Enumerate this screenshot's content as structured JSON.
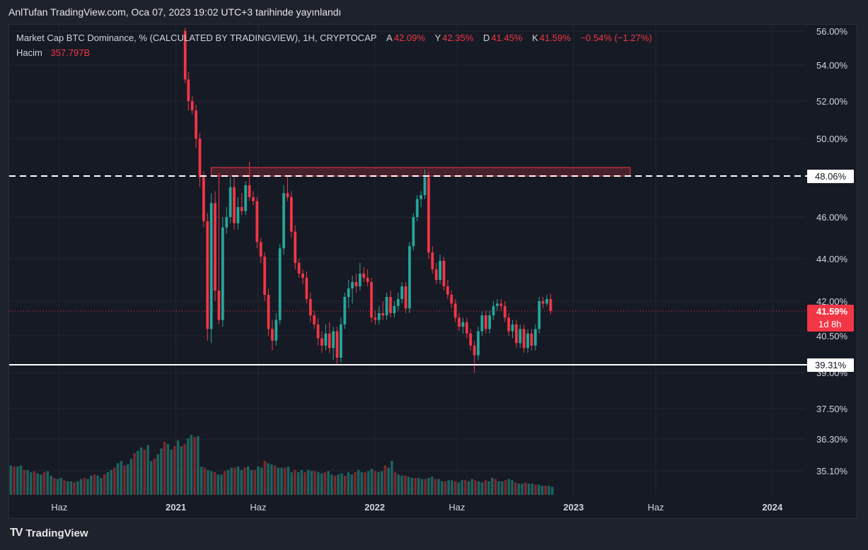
{
  "header": {
    "publish_text": "AnlTufan TradingView.com, Oca 07, 2023 19:02 UTC+3 tarihinde yayınlandı"
  },
  "legend": {
    "symbol": "Market Cap BTC Dominance, % (CALCULATED BY TRADINGVIEW), 1H, CRYPTOCAP",
    "open_label": "A",
    "open_value": "42.09%",
    "high_label": "Y",
    "high_value": "42.35%",
    "low_label": "D",
    "low_value": "41.45%",
    "close_label": "K",
    "close_value": "41.59%",
    "change": "−0.54% (−1.27%)",
    "volume_label": "Hacim",
    "volume_value": "357.797B"
  },
  "price_axis": {
    "ticks": [
      "56.00%",
      "54.00%",
      "52.00%",
      "50.00%",
      "46.00%",
      "44.00%",
      "42.00%",
      "40.50%",
      "39.00%",
      "37.50%",
      "36.30%",
      "35.10%"
    ],
    "resistance_label": "48.06%",
    "support_label": "39.31%",
    "last_price_label": "41.59%",
    "countdown_label": "1d 8h"
  },
  "time_axis": {
    "labels": [
      "Haz",
      "2021",
      "Haz",
      "2022",
      "Haz",
      "2023",
      "Haz",
      "2024"
    ]
  },
  "brand": {
    "logo": "TV",
    "name": "TradingView"
  },
  "colors": {
    "up": "#26a69a",
    "down": "#f23645",
    "background": "#161a25",
    "grid": "#232733",
    "text": "#d1d4dc",
    "zone_border": "#f23645"
  },
  "chart_data": {
    "type": "candlestick",
    "title": "Market Cap BTC Dominance, % (CALCULATED BY TRADINGVIEW), 1H, CRYPTOCAP",
    "ylabel": "%",
    "ylim": [
      39.0,
      56.2
    ],
    "x_range": [
      "2020-03",
      "2024-03"
    ],
    "resistance_level": 48.06,
    "support_level": 39.31,
    "resistance_zone": [
      48.06,
      48.5
    ],
    "last_close": 41.59,
    "candles": [
      {
        "t": "2021-01-18",
        "o": 56.0,
        "h": 56.2,
        "l": 53.0,
        "c": 53.2
      },
      {
        "t": "2021-01-24",
        "o": 53.2,
        "h": 53.6,
        "l": 51.5,
        "c": 52.0
      },
      {
        "t": "2021-01-31",
        "o": 52.0,
        "h": 52.3,
        "l": 51.3,
        "c": 51.5
      },
      {
        "t": "2021-02-07",
        "o": 51.5,
        "h": 51.8,
        "l": 49.5,
        "c": 50.0
      },
      {
        "t": "2021-02-14",
        "o": 50.0,
        "h": 50.3,
        "l": 47.5,
        "c": 48.0
      },
      {
        "t": "2021-02-21",
        "o": 48.0,
        "h": 48.3,
        "l": 45.5,
        "c": 45.8
      },
      {
        "t": "2021-02-28",
        "o": 45.8,
        "h": 46.2,
        "l": 40.3,
        "c": 40.8
      },
      {
        "t": "2021-03-07",
        "o": 40.8,
        "h": 47.2,
        "l": 40.2,
        "c": 46.7
      },
      {
        "t": "2021-03-14",
        "o": 46.7,
        "h": 47.3,
        "l": 42.0,
        "c": 42.5
      },
      {
        "t": "2021-03-21",
        "o": 42.5,
        "h": 48.2,
        "l": 41.0,
        "c": 41.2
      },
      {
        "t": "2021-03-28",
        "o": 41.2,
        "h": 46.0,
        "l": 40.9,
        "c": 45.5
      },
      {
        "t": "2021-04-04",
        "o": 45.5,
        "h": 46.5,
        "l": 45.2,
        "c": 46.0
      },
      {
        "t": "2021-04-11",
        "o": 46.0,
        "h": 48.0,
        "l": 45.7,
        "c": 47.5
      },
      {
        "t": "2021-04-18",
        "o": 47.5,
        "h": 48.0,
        "l": 45.4,
        "c": 45.7
      },
      {
        "t": "2021-04-25",
        "o": 45.7,
        "h": 47.0,
        "l": 45.4,
        "c": 46.5
      },
      {
        "t": "2021-05-02",
        "o": 46.5,
        "h": 47.2,
        "l": 46.1,
        "c": 46.3
      },
      {
        "t": "2021-05-09",
        "o": 46.3,
        "h": 47.8,
        "l": 46.1,
        "c": 47.6
      },
      {
        "t": "2021-05-16",
        "o": 47.6,
        "h": 48.8,
        "l": 46.8,
        "c": 47.0
      },
      {
        "t": "2021-05-23",
        "o": 47.0,
        "h": 47.3,
        "l": 46.6,
        "c": 46.8
      },
      {
        "t": "2021-05-30",
        "o": 46.8,
        "h": 47.0,
        "l": 44.5,
        "c": 44.8
      },
      {
        "t": "2021-06-06",
        "o": 44.8,
        "h": 45.0,
        "l": 43.8,
        "c": 44.1
      },
      {
        "t": "2021-06-13",
        "o": 44.1,
        "h": 44.3,
        "l": 42.0,
        "c": 42.3
      },
      {
        "t": "2021-06-20",
        "o": 42.3,
        "h": 42.6,
        "l": 40.5,
        "c": 40.8
      },
      {
        "t": "2021-06-27",
        "o": 40.8,
        "h": 41.2,
        "l": 39.9,
        "c": 40.3
      },
      {
        "t": "2021-07-04",
        "o": 40.3,
        "h": 41.5,
        "l": 40.1,
        "c": 41.2
      },
      {
        "t": "2021-07-11",
        "o": 41.2,
        "h": 44.7,
        "l": 41.0,
        "c": 44.5
      },
      {
        "t": "2021-07-18",
        "o": 44.5,
        "h": 47.6,
        "l": 44.2,
        "c": 47.2
      },
      {
        "t": "2021-07-25",
        "o": 47.2,
        "h": 48.0,
        "l": 46.8,
        "c": 47.0
      },
      {
        "t": "2021-08-01",
        "o": 47.0,
        "h": 47.3,
        "l": 45.0,
        "c": 45.3
      },
      {
        "t": "2021-08-08",
        "o": 45.3,
        "h": 45.6,
        "l": 43.5,
        "c": 43.8
      },
      {
        "t": "2021-08-15",
        "o": 43.8,
        "h": 44.0,
        "l": 43.1,
        "c": 43.3
      },
      {
        "t": "2021-08-22",
        "o": 43.3,
        "h": 43.5,
        "l": 42.8,
        "c": 43.1
      },
      {
        "t": "2021-08-29",
        "o": 43.1,
        "h": 43.4,
        "l": 41.9,
        "c": 42.1
      },
      {
        "t": "2021-09-05",
        "o": 42.1,
        "h": 42.4,
        "l": 41.1,
        "c": 41.4
      },
      {
        "t": "2021-09-12",
        "o": 41.4,
        "h": 41.6,
        "l": 40.8,
        "c": 41.0
      },
      {
        "t": "2021-09-19",
        "o": 41.0,
        "h": 41.3,
        "l": 40.1,
        "c": 40.4
      },
      {
        "t": "2021-09-26",
        "o": 40.4,
        "h": 40.7,
        "l": 39.8,
        "c": 40.1
      },
      {
        "t": "2021-10-03",
        "o": 40.1,
        "h": 41.0,
        "l": 39.9,
        "c": 40.6
      },
      {
        "t": "2021-10-10",
        "o": 40.6,
        "h": 41.1,
        "l": 39.8,
        "c": 40.0
      },
      {
        "t": "2021-10-17",
        "o": 40.0,
        "h": 40.9,
        "l": 39.5,
        "c": 40.7
      },
      {
        "t": "2021-10-24",
        "o": 40.7,
        "h": 40.9,
        "l": 39.3,
        "c": 39.6
      },
      {
        "t": "2021-10-31",
        "o": 39.6,
        "h": 41.3,
        "l": 39.4,
        "c": 41.0
      },
      {
        "t": "2021-11-07",
        "o": 41.0,
        "h": 42.4,
        "l": 40.8,
        "c": 42.2
      },
      {
        "t": "2021-11-14",
        "o": 42.2,
        "h": 43.0,
        "l": 41.7,
        "c": 42.6
      },
      {
        "t": "2021-11-21",
        "o": 42.6,
        "h": 43.2,
        "l": 41.9,
        "c": 42.9
      },
      {
        "t": "2021-11-28",
        "o": 42.9,
        "h": 43.3,
        "l": 42.4,
        "c": 42.7
      },
      {
        "t": "2021-12-05",
        "o": 42.7,
        "h": 43.8,
        "l": 42.5,
        "c": 43.3
      },
      {
        "t": "2021-12-12",
        "o": 43.3,
        "h": 43.6,
        "l": 42.9,
        "c": 43.1
      },
      {
        "t": "2021-12-19",
        "o": 43.1,
        "h": 43.5,
        "l": 42.7,
        "c": 42.9
      },
      {
        "t": "2021-12-26",
        "o": 42.9,
        "h": 43.1,
        "l": 41.1,
        "c": 41.3
      },
      {
        "t": "2022-01-02",
        "o": 41.3,
        "h": 41.6,
        "l": 41.0,
        "c": 41.2
      },
      {
        "t": "2022-01-09",
        "o": 41.2,
        "h": 41.8,
        "l": 41.0,
        "c": 41.5
      },
      {
        "t": "2022-01-16",
        "o": 41.5,
        "h": 42.0,
        "l": 41.2,
        "c": 41.4
      },
      {
        "t": "2022-01-23",
        "o": 41.4,
        "h": 42.4,
        "l": 41.2,
        "c": 42.2
      },
      {
        "t": "2022-01-30",
        "o": 42.2,
        "h": 42.5,
        "l": 41.3,
        "c": 41.5
      },
      {
        "t": "2022-02-06",
        "o": 41.5,
        "h": 42.0,
        "l": 41.3,
        "c": 41.8
      },
      {
        "t": "2022-02-13",
        "o": 41.8,
        "h": 42.4,
        "l": 41.6,
        "c": 42.1
      },
      {
        "t": "2022-02-20",
        "o": 42.1,
        "h": 42.9,
        "l": 41.9,
        "c": 42.7
      },
      {
        "t": "2022-02-27",
        "o": 42.7,
        "h": 42.9,
        "l": 41.5,
        "c": 41.7
      },
      {
        "t": "2022-03-06",
        "o": 41.7,
        "h": 44.8,
        "l": 41.5,
        "c": 44.6
      },
      {
        "t": "2022-03-13",
        "o": 44.6,
        "h": 46.2,
        "l": 44.4,
        "c": 46.0
      },
      {
        "t": "2022-03-20",
        "o": 46.0,
        "h": 47.1,
        "l": 45.8,
        "c": 46.9
      },
      {
        "t": "2022-03-27",
        "o": 46.9,
        "h": 47.3,
        "l": 46.5,
        "c": 47.1
      },
      {
        "t": "2022-04-03",
        "o": 47.1,
        "h": 48.4,
        "l": 46.9,
        "c": 48.0
      },
      {
        "t": "2022-04-10",
        "o": 48.0,
        "h": 48.3,
        "l": 44.0,
        "c": 44.3
      },
      {
        "t": "2022-04-17",
        "o": 44.3,
        "h": 44.6,
        "l": 43.3,
        "c": 43.5
      },
      {
        "t": "2022-04-24",
        "o": 43.5,
        "h": 43.8,
        "l": 42.8,
        "c": 43.0
      },
      {
        "t": "2022-05-01",
        "o": 43.0,
        "h": 44.2,
        "l": 42.8,
        "c": 43.9
      },
      {
        "t": "2022-05-08",
        "o": 43.9,
        "h": 44.1,
        "l": 42.5,
        "c": 42.7
      },
      {
        "t": "2022-05-15",
        "o": 42.7,
        "h": 43.0,
        "l": 42.1,
        "c": 42.3
      },
      {
        "t": "2022-05-22",
        "o": 42.3,
        "h": 42.5,
        "l": 41.7,
        "c": 41.9
      },
      {
        "t": "2022-05-29",
        "o": 41.9,
        "h": 42.1,
        "l": 41.1,
        "c": 41.3
      },
      {
        "t": "2022-06-05",
        "o": 41.3,
        "h": 41.5,
        "l": 40.7,
        "c": 40.9
      },
      {
        "t": "2022-06-12",
        "o": 40.9,
        "h": 41.3,
        "l": 40.6,
        "c": 41.1
      },
      {
        "t": "2022-06-19",
        "o": 41.1,
        "h": 41.3,
        "l": 40.4,
        "c": 40.6
      },
      {
        "t": "2022-06-26",
        "o": 40.6,
        "h": 40.8,
        "l": 39.9,
        "c": 40.1
      },
      {
        "t": "2022-07-03",
        "o": 40.1,
        "h": 40.3,
        "l": 39.0,
        "c": 39.7
      },
      {
        "t": "2022-07-10",
        "o": 39.7,
        "h": 40.9,
        "l": 39.5,
        "c": 40.7
      },
      {
        "t": "2022-07-17",
        "o": 40.7,
        "h": 41.6,
        "l": 40.5,
        "c": 41.4
      },
      {
        "t": "2022-07-24",
        "o": 41.4,
        "h": 41.6,
        "l": 40.6,
        "c": 40.8
      },
      {
        "t": "2022-07-31",
        "o": 40.8,
        "h": 41.6,
        "l": 40.6,
        "c": 41.4
      },
      {
        "t": "2022-08-07",
        "o": 41.4,
        "h": 42.0,
        "l": 41.2,
        "c": 41.8
      },
      {
        "t": "2022-08-14",
        "o": 41.8,
        "h": 42.1,
        "l": 41.6,
        "c": 41.9
      },
      {
        "t": "2022-08-21",
        "o": 41.9,
        "h": 42.1,
        "l": 41.6,
        "c": 41.8
      },
      {
        "t": "2022-08-28",
        "o": 41.8,
        "h": 42.0,
        "l": 41.1,
        "c": 41.3
      },
      {
        "t": "2022-09-04",
        "o": 41.3,
        "h": 41.5,
        "l": 40.5,
        "c": 40.7
      },
      {
        "t": "2022-09-11",
        "o": 40.7,
        "h": 41.2,
        "l": 40.4,
        "c": 41.0
      },
      {
        "t": "2022-09-18",
        "o": 41.0,
        "h": 41.2,
        "l": 40.0,
        "c": 40.2
      },
      {
        "t": "2022-09-25",
        "o": 40.2,
        "h": 41.0,
        "l": 40.0,
        "c": 40.8
      },
      {
        "t": "2022-10-02",
        "o": 40.8,
        "h": 41.0,
        "l": 39.8,
        "c": 40.0
      },
      {
        "t": "2022-10-09",
        "o": 40.0,
        "h": 40.8,
        "l": 39.8,
        "c": 40.6
      },
      {
        "t": "2022-10-16",
        "o": 40.6,
        "h": 40.8,
        "l": 39.9,
        "c": 40.1
      },
      {
        "t": "2022-10-23",
        "o": 40.1,
        "h": 41.0,
        "l": 39.9,
        "c": 40.8
      },
      {
        "t": "2022-10-30",
        "o": 40.8,
        "h": 42.2,
        "l": 40.6,
        "c": 42.0
      },
      {
        "t": "2022-11-06",
        "o": 42.0,
        "h": 42.2,
        "l": 41.7,
        "c": 41.9
      },
      {
        "t": "2022-11-13",
        "o": 41.9,
        "h": 42.3,
        "l": 41.8,
        "c": 42.1
      },
      {
        "t": "2022-11-20",
        "o": 42.1,
        "h": 42.35,
        "l": 41.45,
        "c": 41.59
      }
    ],
    "volume_ylim": [
      0,
      100
    ],
    "volume": [
      26,
      25,
      25,
      26,
      22,
      22,
      20,
      21,
      19,
      18,
      20,
      21,
      17,
      15,
      14,
      15,
      13,
      12,
      12,
      11,
      12,
      14,
      15,
      14,
      17,
      18,
      17,
      15,
      18,
      20,
      22,
      24,
      28,
      30,
      26,
      27,
      32,
      37,
      39,
      42,
      40,
      44,
      30,
      32,
      36,
      41,
      47,
      45,
      40,
      43,
      48,
      43,
      45,
      50,
      53,
      51,
      52,
      25,
      24,
      22,
      21,
      20,
      18,
      18,
      21,
      22,
      24,
      24,
      25,
      22,
      24,
      25,
      22,
      22,
      25,
      24,
      30,
      28,
      27,
      26,
      24,
      24,
      24,
      25,
      20,
      22,
      20,
      22,
      20,
      22,
      21,
      21,
      20,
      19,
      20,
      21,
      18,
      17,
      18,
      19,
      17,
      20,
      18,
      20,
      22,
      20,
      20,
      21,
      23,
      21,
      20,
      21,
      26,
      24,
      30,
      20,
      18,
      17,
      17,
      16,
      15,
      15,
      15,
      14,
      14,
      15,
      16,
      14,
      14,
      12,
      12,
      13,
      13,
      12,
      11,
      13,
      13,
      12,
      14,
      13,
      12,
      11,
      13,
      12,
      15,
      14,
      12,
      12,
      13,
      14,
      13,
      11,
      10,
      10,
      11,
      10,
      10,
      9,
      9,
      8,
      8,
      8,
      7
    ]
  }
}
